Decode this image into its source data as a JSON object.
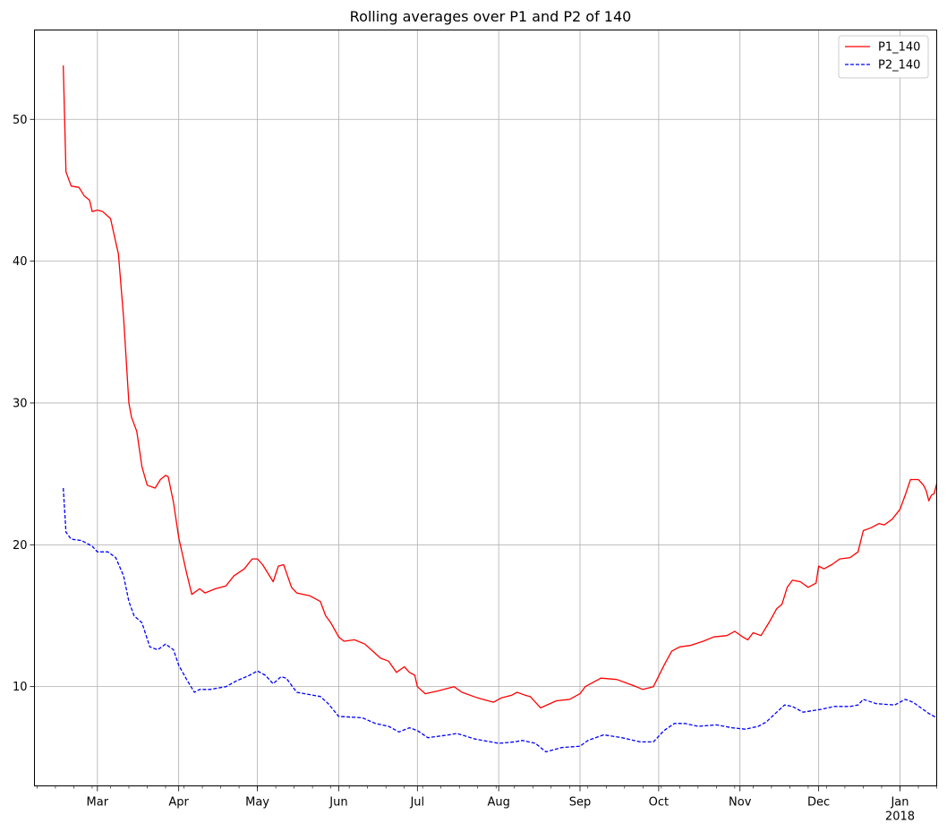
{
  "chart_data": {
    "type": "line",
    "title": "Rolling averages over P1 and P2 of 140",
    "xlabel": "",
    "ylabel": "",
    "grid": true,
    "legend_position": "top-right",
    "x_range": [
      "2017-02-05",
      "2018-01-15"
    ],
    "y_range": [
      3,
      56.3
    ],
    "y_ticks": [
      10,
      20,
      30,
      40,
      50
    ],
    "x_ticks": [
      {
        "date": "2017-03-01",
        "label": "Mar"
      },
      {
        "date": "2017-04-01",
        "label": "Apr"
      },
      {
        "date": "2017-05-01",
        "label": "May"
      },
      {
        "date": "2017-06-01",
        "label": "Jun"
      },
      {
        "date": "2017-07-01",
        "label": "Jul"
      },
      {
        "date": "2017-08-01",
        "label": "Aug"
      },
      {
        "date": "2017-09-01",
        "label": "Sep"
      },
      {
        "date": "2017-10-01",
        "label": "Oct"
      },
      {
        "date": "2017-11-01",
        "label": "Nov"
      },
      {
        "date": "2017-12-01",
        "label": "Dec"
      },
      {
        "date": "2018-01-01",
        "label": "Jan",
        "sublabel": "2018"
      }
    ],
    "series": [
      {
        "name": "P1_140",
        "color": "#ff0000",
        "dash": "solid",
        "points": [
          [
            "2017-02-16",
            53.8
          ],
          [
            "2017-02-17",
            46.3
          ],
          [
            "2017-02-19",
            45.3
          ],
          [
            "2017-02-22",
            45.2
          ],
          [
            "2017-02-24",
            44.6
          ],
          [
            "2017-02-26",
            44.3
          ],
          [
            "2017-02-27",
            43.5
          ],
          [
            "2017-03-01",
            43.6
          ],
          [
            "2017-03-03",
            43.5
          ],
          [
            "2017-03-06",
            43.0
          ],
          [
            "2017-03-09",
            40.5
          ],
          [
            "2017-03-11",
            36.0
          ],
          [
            "2017-03-13",
            30.0
          ],
          [
            "2017-03-14",
            29.0
          ],
          [
            "2017-03-16",
            28.0
          ],
          [
            "2017-03-18",
            25.5
          ],
          [
            "2017-03-20",
            24.2
          ],
          [
            "2017-03-23",
            24.0
          ],
          [
            "2017-03-25",
            24.6
          ],
          [
            "2017-03-27",
            24.9
          ],
          [
            "2017-03-28",
            24.8
          ],
          [
            "2017-03-30",
            23.0
          ],
          [
            "2017-04-01",
            20.5
          ],
          [
            "2017-04-04",
            18.0
          ],
          [
            "2017-04-06",
            16.5
          ],
          [
            "2017-04-09",
            16.9
          ],
          [
            "2017-04-11",
            16.6
          ],
          [
            "2017-04-15",
            16.9
          ],
          [
            "2017-04-19",
            17.1
          ],
          [
            "2017-04-22",
            17.8
          ],
          [
            "2017-04-26",
            18.3
          ],
          [
            "2017-04-29",
            19.0
          ],
          [
            "2017-05-01",
            19.0
          ],
          [
            "2017-05-03",
            18.6
          ],
          [
            "2017-05-05",
            18.0
          ],
          [
            "2017-05-07",
            17.4
          ],
          [
            "2017-05-09",
            18.5
          ],
          [
            "2017-05-11",
            18.6
          ],
          [
            "2017-05-14",
            17.0
          ],
          [
            "2017-05-16",
            16.6
          ],
          [
            "2017-05-21",
            16.4
          ],
          [
            "2017-05-25",
            16.0
          ],
          [
            "2017-05-27",
            15.0
          ],
          [
            "2017-05-29",
            14.5
          ],
          [
            "2017-06-01",
            13.5
          ],
          [
            "2017-06-03",
            13.2
          ],
          [
            "2017-06-07",
            13.3
          ],
          [
            "2017-06-11",
            13.0
          ],
          [
            "2017-06-14",
            12.5
          ],
          [
            "2017-06-17",
            12.0
          ],
          [
            "2017-06-20",
            11.8
          ],
          [
            "2017-06-23",
            11.0
          ],
          [
            "2017-06-26",
            11.4
          ],
          [
            "2017-06-28",
            11.0
          ],
          [
            "2017-06-30",
            10.8
          ],
          [
            "2017-07-01",
            10.0
          ],
          [
            "2017-07-04",
            9.5
          ],
          [
            "2017-07-09",
            9.7
          ],
          [
            "2017-07-13",
            9.9
          ],
          [
            "2017-07-15",
            10.0
          ],
          [
            "2017-07-18",
            9.6
          ],
          [
            "2017-07-24",
            9.2
          ],
          [
            "2017-07-30",
            8.9
          ],
          [
            "2017-08-02",
            9.2
          ],
          [
            "2017-08-06",
            9.4
          ],
          [
            "2017-08-08",
            9.6
          ],
          [
            "2017-08-11",
            9.4
          ],
          [
            "2017-08-13",
            9.3
          ],
          [
            "2017-08-17",
            8.5
          ],
          [
            "2017-08-23",
            9.0
          ],
          [
            "2017-08-28",
            9.1
          ],
          [
            "2017-09-01",
            9.5
          ],
          [
            "2017-09-03",
            10.0
          ],
          [
            "2017-09-07",
            10.4
          ],
          [
            "2017-09-09",
            10.6
          ],
          [
            "2017-09-15",
            10.5
          ],
          [
            "2017-09-21",
            10.1
          ],
          [
            "2017-09-25",
            9.8
          ],
          [
            "2017-09-29",
            10.0
          ],
          [
            "2017-10-03",
            11.5
          ],
          [
            "2017-10-06",
            12.5
          ],
          [
            "2017-10-09",
            12.8
          ],
          [
            "2017-10-13",
            12.9
          ],
          [
            "2017-10-18",
            13.2
          ],
          [
            "2017-10-22",
            13.5
          ],
          [
            "2017-10-27",
            13.6
          ],
          [
            "2017-10-30",
            13.9
          ],
          [
            "2017-11-02",
            13.5
          ],
          [
            "2017-11-04",
            13.3
          ],
          [
            "2017-11-06",
            13.8
          ],
          [
            "2017-11-09",
            13.6
          ],
          [
            "2017-11-12",
            14.5
          ],
          [
            "2017-11-15",
            15.5
          ],
          [
            "2017-11-17",
            15.8
          ],
          [
            "2017-11-19",
            17.0
          ],
          [
            "2017-11-21",
            17.5
          ],
          [
            "2017-11-24",
            17.4
          ],
          [
            "2017-11-27",
            17.0
          ],
          [
            "2017-11-30",
            17.3
          ],
          [
            "2017-12-01",
            18.5
          ],
          [
            "2017-12-03",
            18.3
          ],
          [
            "2017-12-06",
            18.6
          ],
          [
            "2017-12-09",
            19.0
          ],
          [
            "2017-12-13",
            19.1
          ],
          [
            "2017-12-16",
            19.5
          ],
          [
            "2017-12-18",
            21.0
          ],
          [
            "2017-12-21",
            21.2
          ],
          [
            "2017-12-24",
            21.5
          ],
          [
            "2017-12-26",
            21.4
          ],
          [
            "2017-12-29",
            21.8
          ],
          [
            "2018-01-01",
            22.5
          ],
          [
            "2018-01-03",
            23.5
          ],
          [
            "2018-01-05",
            24.6
          ],
          [
            "2018-01-08",
            24.6
          ],
          [
            "2018-01-10",
            24.2
          ],
          [
            "2018-01-11",
            23.8
          ],
          [
            "2018-01-12",
            23.1
          ],
          [
            "2018-01-13",
            23.5
          ],
          [
            "2018-01-14",
            23.6
          ],
          [
            "2018-01-15",
            24.3
          ]
        ]
      },
      {
        "name": "P2_140",
        "color": "#0000ff",
        "dash": "dashed",
        "points": [
          [
            "2017-02-16",
            24.0
          ],
          [
            "2017-02-17",
            20.9
          ],
          [
            "2017-02-19",
            20.4
          ],
          [
            "2017-02-23",
            20.3
          ],
          [
            "2017-02-27",
            19.9
          ],
          [
            "2017-03-01",
            19.5
          ],
          [
            "2017-03-05",
            19.5
          ],
          [
            "2017-03-08",
            19.1
          ],
          [
            "2017-03-11",
            17.8
          ],
          [
            "2017-03-13",
            16.0
          ],
          [
            "2017-03-15",
            15.0
          ],
          [
            "2017-03-18",
            14.5
          ],
          [
            "2017-03-21",
            12.8
          ],
          [
            "2017-03-24",
            12.6
          ],
          [
            "2017-03-27",
            13.0
          ],
          [
            "2017-03-30",
            12.6
          ],
          [
            "2017-04-01",
            11.5
          ],
          [
            "2017-04-04",
            10.5
          ],
          [
            "2017-04-07",
            9.6
          ],
          [
            "2017-04-09",
            9.8
          ],
          [
            "2017-04-13",
            9.8
          ],
          [
            "2017-04-19",
            10.0
          ],
          [
            "2017-04-23",
            10.4
          ],
          [
            "2017-04-28",
            10.8
          ],
          [
            "2017-05-01",
            11.1
          ],
          [
            "2017-05-04",
            10.8
          ],
          [
            "2017-05-07",
            10.2
          ],
          [
            "2017-05-10",
            10.7
          ],
          [
            "2017-05-12",
            10.6
          ],
          [
            "2017-05-16",
            9.6
          ],
          [
            "2017-05-25",
            9.3
          ],
          [
            "2017-05-28",
            8.8
          ],
          [
            "2017-06-01",
            7.9
          ],
          [
            "2017-06-10",
            7.8
          ],
          [
            "2017-06-15",
            7.4
          ],
          [
            "2017-06-20",
            7.2
          ],
          [
            "2017-06-24",
            6.8
          ],
          [
            "2017-06-28",
            7.1
          ],
          [
            "2017-07-01",
            6.9
          ],
          [
            "2017-07-05",
            6.4
          ],
          [
            "2017-07-13",
            6.6
          ],
          [
            "2017-07-16",
            6.7
          ],
          [
            "2017-07-23",
            6.3
          ],
          [
            "2017-08-01",
            6.0
          ],
          [
            "2017-08-07",
            6.1
          ],
          [
            "2017-08-10",
            6.2
          ],
          [
            "2017-08-15",
            6.0
          ],
          [
            "2017-08-19",
            5.4
          ],
          [
            "2017-08-25",
            5.7
          ],
          [
            "2017-09-01",
            5.8
          ],
          [
            "2017-09-04",
            6.2
          ],
          [
            "2017-09-10",
            6.6
          ],
          [
            "2017-09-17",
            6.4
          ],
          [
            "2017-09-24",
            6.1
          ],
          [
            "2017-09-29",
            6.1
          ],
          [
            "2017-10-03",
            6.9
          ],
          [
            "2017-10-07",
            7.4
          ],
          [
            "2017-10-11",
            7.4
          ],
          [
            "2017-10-16",
            7.2
          ],
          [
            "2017-10-23",
            7.3
          ],
          [
            "2017-10-29",
            7.1
          ],
          [
            "2017-11-03",
            7.0
          ],
          [
            "2017-11-08",
            7.2
          ],
          [
            "2017-11-11",
            7.5
          ],
          [
            "2017-11-15",
            8.2
          ],
          [
            "2017-11-18",
            8.7
          ],
          [
            "2017-11-21",
            8.6
          ],
          [
            "2017-11-25",
            8.2
          ],
          [
            "2017-12-02",
            8.4
          ],
          [
            "2017-12-07",
            8.6
          ],
          [
            "2017-12-13",
            8.6
          ],
          [
            "2017-12-16",
            8.7
          ],
          [
            "2017-12-18",
            9.1
          ],
          [
            "2017-12-23",
            8.8
          ],
          [
            "2017-12-30",
            8.7
          ],
          [
            "2018-01-03",
            9.1
          ],
          [
            "2018-01-06",
            8.9
          ],
          [
            "2018-01-09",
            8.5
          ],
          [
            "2018-01-12",
            8.1
          ],
          [
            "2018-01-15",
            7.8
          ]
        ]
      }
    ]
  }
}
